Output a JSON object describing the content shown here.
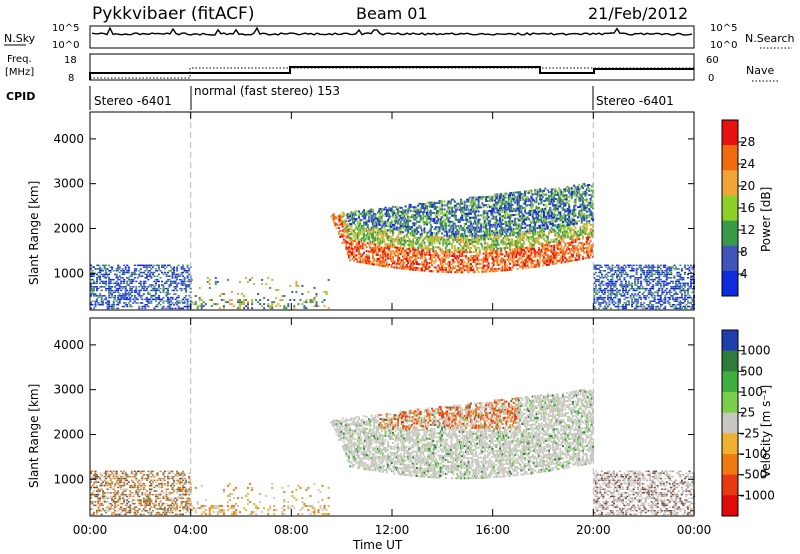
{
  "header": {
    "station": "Pykkvibaer (fitACF)",
    "beam": "Beam 01",
    "date": "21/Feb/2012"
  },
  "strips": {
    "nsky_label": "N.Sky",
    "nsearch_label": "N.Search",
    "noise_ticks": [
      "10^5",
      "10^0"
    ],
    "freq_label_1": "Freq.",
    "freq_label_2": "[MHz]",
    "freq_ticks": [
      "18",
      "8"
    ],
    "nave_label": "Nave",
    "nave_ticks": [
      "60",
      "0"
    ],
    "cpid_label": "CPID",
    "cpid_segments": [
      {
        "label": "Stereo -6401",
        "start_h": 0,
        "end_h": 4
      },
      {
        "label": "normal (fast stereo) 153",
        "start_h": 4,
        "end_h": 20
      },
      {
        "label": "Stereo -6401",
        "start_h": 20,
        "end_h": 24
      }
    ]
  },
  "chart_data": [
    {
      "type": "heatmap",
      "panel": "power",
      "ylabel": "Slant Range [km]",
      "yticks": [
        1000,
        2000,
        3000,
        4000
      ],
      "ylim": [
        180,
        4600
      ],
      "xlim": [
        0,
        24
      ],
      "colorbar_label": "Power [dB]",
      "colorbar_ticks": [
        "28",
        "24",
        "20",
        "16",
        "12",
        "8",
        "4"
      ],
      "colorbar_colors": [
        "#e8120f",
        "#f06a10",
        "#f2a33a",
        "#8fcf2a",
        "#3a9a4a",
        "#3f55b8",
        "#0f2bde"
      ]
    },
    {
      "type": "heatmap",
      "panel": "velocity",
      "ylabel": "Slant Range [km]",
      "yticks": [
        1000,
        2000,
        3000,
        4000
      ],
      "ylim": [
        180,
        4600
      ],
      "xlim": [
        0,
        24
      ],
      "xlabel": "Time UT",
      "xticks": [
        "00:00",
        "04:00",
        "08:00",
        "12:00",
        "16:00",
        "20:00",
        "00:00"
      ],
      "colorbar_label": "Velocity [m s⁻¹]",
      "colorbar_ticks": [
        "1000",
        "500",
        "100",
        "25",
        "-25",
        "-100",
        "-500",
        "-1000"
      ],
      "colorbar_colors": [
        "#1f3fae",
        "#2f7c3a",
        "#3fae3f",
        "#7ad04a",
        "#c8c8c0",
        "#f0b030",
        "#f07a12",
        "#e83a12",
        "#e00a0a"
      ]
    }
  ]
}
